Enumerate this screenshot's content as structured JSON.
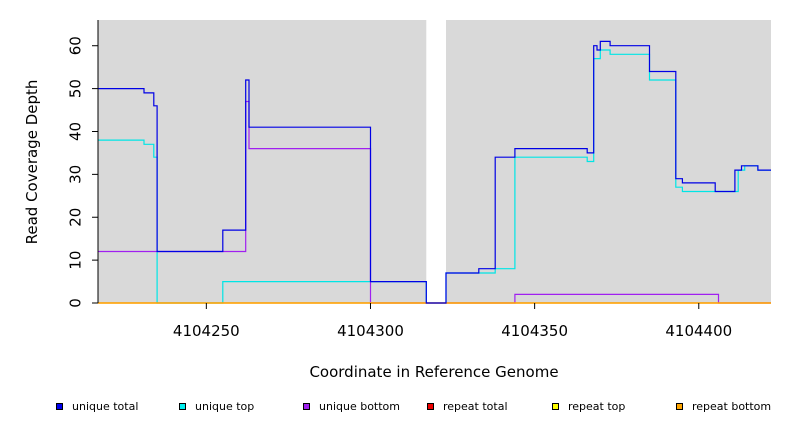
{
  "chart_data": {
    "type": "line",
    "xlabel": "Coordinate in Reference Genome",
    "ylabel": "Read Coverage Depth",
    "xlim": [
      4104217,
      4104422
    ],
    "ylim": [
      0,
      66
    ],
    "xticks": [
      4104250,
      4104300,
      4104350,
      4104400
    ],
    "yticks": [
      0,
      10,
      20,
      30,
      40,
      50,
      60
    ],
    "grid": false,
    "legend_position": "bottom",
    "background_regions": [
      [
        4104217,
        4104317
      ],
      [
        4104323,
        4104422
      ]
    ],
    "series": [
      {
        "name": "unique top",
        "color": "#00e5e5",
        "x": [
          4104217,
          4104231,
          4104234,
          4104235,
          4104255,
          4104300,
          4104317,
          4104323,
          4104338,
          4104344,
          4104349,
          4104366,
          4104368,
          4104370,
          4104373,
          4104385,
          4104393,
          4104395,
          4104402,
          4104405,
          4104412,
          4104414,
          4104418,
          4104422
        ],
        "y": [
          38,
          37,
          34,
          0,
          5,
          5,
          0,
          7,
          8,
          34,
          34,
          33,
          57,
          59,
          58,
          52,
          27,
          26,
          26,
          26,
          31,
          32,
          31,
          31
        ]
      },
      {
        "name": "unique bottom",
        "color": "#a020f0",
        "x": [
          4104217,
          4104262,
          4104263,
          4104300,
          4104317,
          4104323,
          4104344,
          4104406,
          4104422
        ],
        "y": [
          12,
          47,
          36,
          0,
          0,
          0,
          2,
          0,
          0
        ]
      },
      {
        "name": "repeat total",
        "color": "#ff0000",
        "x": [
          4104217,
          4104422
        ],
        "y": [
          0,
          0
        ]
      },
      {
        "name": "repeat top",
        "color": "#ffff00",
        "x": [
          4104217,
          4104422
        ],
        "y": [
          0,
          0
        ]
      },
      {
        "name": "repeat bottom",
        "color": "#ffa500",
        "x": [
          4104217,
          4104317,
          4104323,
          4104422
        ],
        "y": [
          0,
          0,
          0,
          0
        ]
      },
      {
        "name": "unique total",
        "color": "#0000e5",
        "x": [
          4104217,
          4104231,
          4104234,
          4104235,
          4104255,
          4104262,
          4104263,
          4104300,
          4104317,
          4104323,
          4104333,
          4104338,
          4104344,
          4104349,
          4104366,
          4104368,
          4104369,
          4104370,
          4104373,
          4104385,
          4104393,
          4104395,
          4104402,
          4104405,
          4104411,
          4104413,
          4104418,
          4104422
        ],
        "y": [
          50,
          49,
          46,
          12,
          17,
          52,
          41,
          5,
          0,
          7,
          8,
          34,
          36,
          36,
          35,
          60,
          59,
          61,
          60,
          54,
          29,
          28,
          28,
          26,
          31,
          32,
          31,
          31
        ]
      }
    ],
    "legend": [
      {
        "name": "unique total",
        "color": "#0000ee"
      },
      {
        "name": "unique top",
        "color": "#00eeee"
      },
      {
        "name": "unique bottom",
        "color": "#a020f0"
      },
      {
        "name": "repeat total",
        "color": "#ee0000"
      },
      {
        "name": "repeat top",
        "color": "#ffff00"
      },
      {
        "name": "repeat bottom",
        "color": "#ffa500"
      }
    ]
  }
}
